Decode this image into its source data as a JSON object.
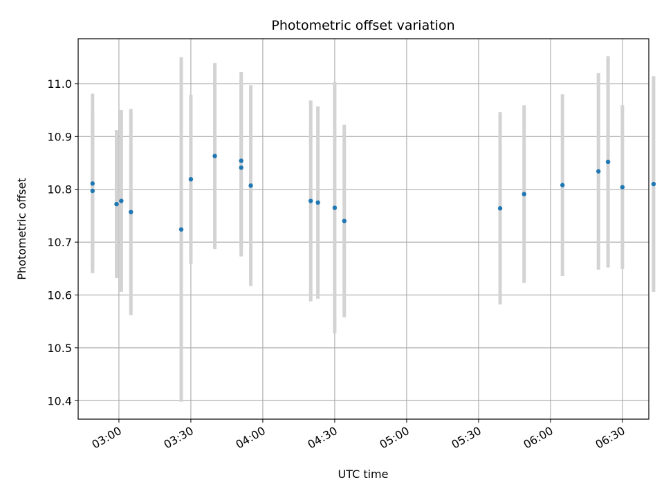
{
  "chart_data": {
    "type": "scatter",
    "title": "Photometric offset variation",
    "xlabel": "UTC time",
    "ylabel": "Photometric offset",
    "x_ticks": [
      "03:00",
      "03:30",
      "04:00",
      "04:30",
      "05:00",
      "05:30",
      "06:00",
      "06:30"
    ],
    "y_ticks": [
      "10.4",
      "10.5",
      "10.6",
      "10.7",
      "10.8",
      "10.9",
      "11.0"
    ],
    "xlim": [
      "02:43",
      "06:41"
    ],
    "ylim": [
      10.365,
      11.085
    ],
    "grid": true,
    "colors": {
      "point": "#1f77b4",
      "errorbar": "#d3d3d3",
      "grid": "#b0b0b0"
    },
    "points": [
      {
        "t": "02:49",
        "y": 10.811,
        "err": 0.17
      },
      {
        "t": "02:49",
        "y": 10.797,
        "err": 0.148
      },
      {
        "t": "02:59",
        "y": 10.772,
        "err": 0.14
      },
      {
        "t": "03:01",
        "y": 10.778,
        "err": 0.172
      },
      {
        "t": "03:05",
        "y": 10.757,
        "err": 0.195
      },
      {
        "t": "03:26",
        "y": 10.724,
        "err": 0.326
      },
      {
        "t": "03:30",
        "y": 10.819,
        "err": 0.16
      },
      {
        "t": "03:40",
        "y": 10.863,
        "err": 0.176
      },
      {
        "t": "03:51",
        "y": 10.854,
        "err": 0.168
      },
      {
        "t": "03:51",
        "y": 10.841,
        "err": 0.168
      },
      {
        "t": "03:55",
        "y": 10.807,
        "err": 0.19
      },
      {
        "t": "04:20",
        "y": 10.778,
        "err": 0.19
      },
      {
        "t": "04:23",
        "y": 10.775,
        "err": 0.182
      },
      {
        "t": "04:30",
        "y": 10.765,
        "err": 0.238
      },
      {
        "t": "04:34",
        "y": 10.74,
        "err": 0.182
      },
      {
        "t": "05:39",
        "y": 10.764,
        "err": 0.182
      },
      {
        "t": "05:49",
        "y": 10.791,
        "err": 0.168
      },
      {
        "t": "06:05",
        "y": 10.808,
        "err": 0.172
      },
      {
        "t": "06:20",
        "y": 10.834,
        "err": 0.186
      },
      {
        "t": "06:24",
        "y": 10.852,
        "err": 0.2
      },
      {
        "t": "06:30",
        "y": 10.804,
        "err": 0.155
      },
      {
        "t": "06:43",
        "y": 10.81,
        "err": 0.204
      }
    ]
  }
}
